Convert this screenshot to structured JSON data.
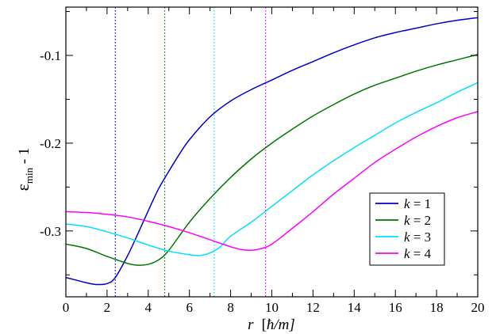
{
  "chart_data": {
    "type": "line",
    "title": "",
    "xlabel": {
      "var": "r",
      "unit_open": "[",
      "unit_hbar": "ħ",
      "unit_rest": "/m]"
    },
    "ylabel": {
      "base": "ε",
      "sub": "min",
      "suffix": " - 1"
    },
    "xlim": [
      0,
      20
    ],
    "ylim": [
      -0.375,
      -0.045
    ],
    "xticks": [
      0,
      2,
      4,
      6,
      8,
      10,
      12,
      14,
      16,
      18,
      20
    ],
    "xtick_labels": [
      "0",
      "2",
      "4",
      "6",
      "8",
      "10",
      "12",
      "14",
      "16",
      "18",
      "20"
    ],
    "yticks": [
      -0.1,
      -0.2,
      -0.3
    ],
    "ytick_labels": [
      "-0.1",
      "-0.2",
      "-0.3"
    ],
    "grid": false,
    "legend_position": "bottom-right",
    "series": [
      {
        "name": "k = 1",
        "k": "1",
        "color": "#0000cc",
        "vline_x": 2.4,
        "x": [
          0,
          0.5,
          1,
          1.5,
          2,
          2.4,
          3,
          3.5,
          4,
          4.5,
          5,
          5.5,
          6,
          7,
          8,
          9,
          10,
          11,
          12,
          13,
          14,
          15,
          16,
          17,
          18,
          19,
          20
        ],
        "y": [
          -0.353,
          -0.356,
          -0.359,
          -0.361,
          -0.36,
          -0.353,
          -0.328,
          -0.303,
          -0.277,
          -0.252,
          -0.232,
          -0.213,
          -0.196,
          -0.17,
          -0.152,
          -0.139,
          -0.128,
          -0.117,
          -0.107,
          -0.097,
          -0.088,
          -0.08,
          -0.074,
          -0.069,
          -0.064,
          -0.06,
          -0.057
        ]
      },
      {
        "name": "k = 2",
        "k": "2",
        "color": "#007700",
        "vline_x": 4.8,
        "x": [
          0,
          1,
          2,
          3,
          3.5,
          4,
          4.5,
          5,
          6,
          7,
          8,
          9,
          10,
          11,
          12,
          13,
          14,
          15,
          16,
          17,
          18,
          19,
          20
        ],
        "y": [
          -0.315,
          -0.32,
          -0.329,
          -0.337,
          -0.339,
          -0.338,
          -0.333,
          -0.322,
          -0.29,
          -0.263,
          -0.239,
          -0.218,
          -0.2,
          -0.184,
          -0.169,
          -0.156,
          -0.144,
          -0.134,
          -0.126,
          -0.118,
          -0.111,
          -0.105,
          -0.099
        ]
      },
      {
        "name": "k = 3",
        "k": "3",
        "color": "#00e0ff",
        "vline_x": 7.2,
        "x": [
          0,
          1,
          2,
          3,
          4,
          5,
          6,
          6.5,
          7,
          7.5,
          8,
          9,
          10,
          11,
          12,
          13,
          14,
          15,
          16,
          17,
          18,
          19,
          20
        ],
        "y": [
          -0.292,
          -0.295,
          -0.301,
          -0.308,
          -0.316,
          -0.323,
          -0.327,
          -0.328,
          -0.325,
          -0.318,
          -0.306,
          -0.29,
          -0.272,
          -0.254,
          -0.236,
          -0.22,
          -0.205,
          -0.191,
          -0.177,
          -0.165,
          -0.154,
          -0.142,
          -0.131
        ]
      },
      {
        "name": "k = 4",
        "k": "4",
        "color": "#ff00ff",
        "vline_x": 9.7,
        "x": [
          0,
          1,
          2,
          3,
          4,
          5,
          6,
          7,
          8,
          8.5,
          9,
          9.5,
          10,
          11,
          12,
          13,
          14,
          15,
          16,
          17,
          18,
          19,
          20
        ],
        "y": [
          -0.278,
          -0.279,
          -0.281,
          -0.284,
          -0.289,
          -0.295,
          -0.302,
          -0.31,
          -0.318,
          -0.321,
          -0.322,
          -0.32,
          -0.315,
          -0.297,
          -0.278,
          -0.258,
          -0.24,
          -0.222,
          -0.207,
          -0.193,
          -0.181,
          -0.171,
          -0.164
        ]
      }
    ]
  }
}
